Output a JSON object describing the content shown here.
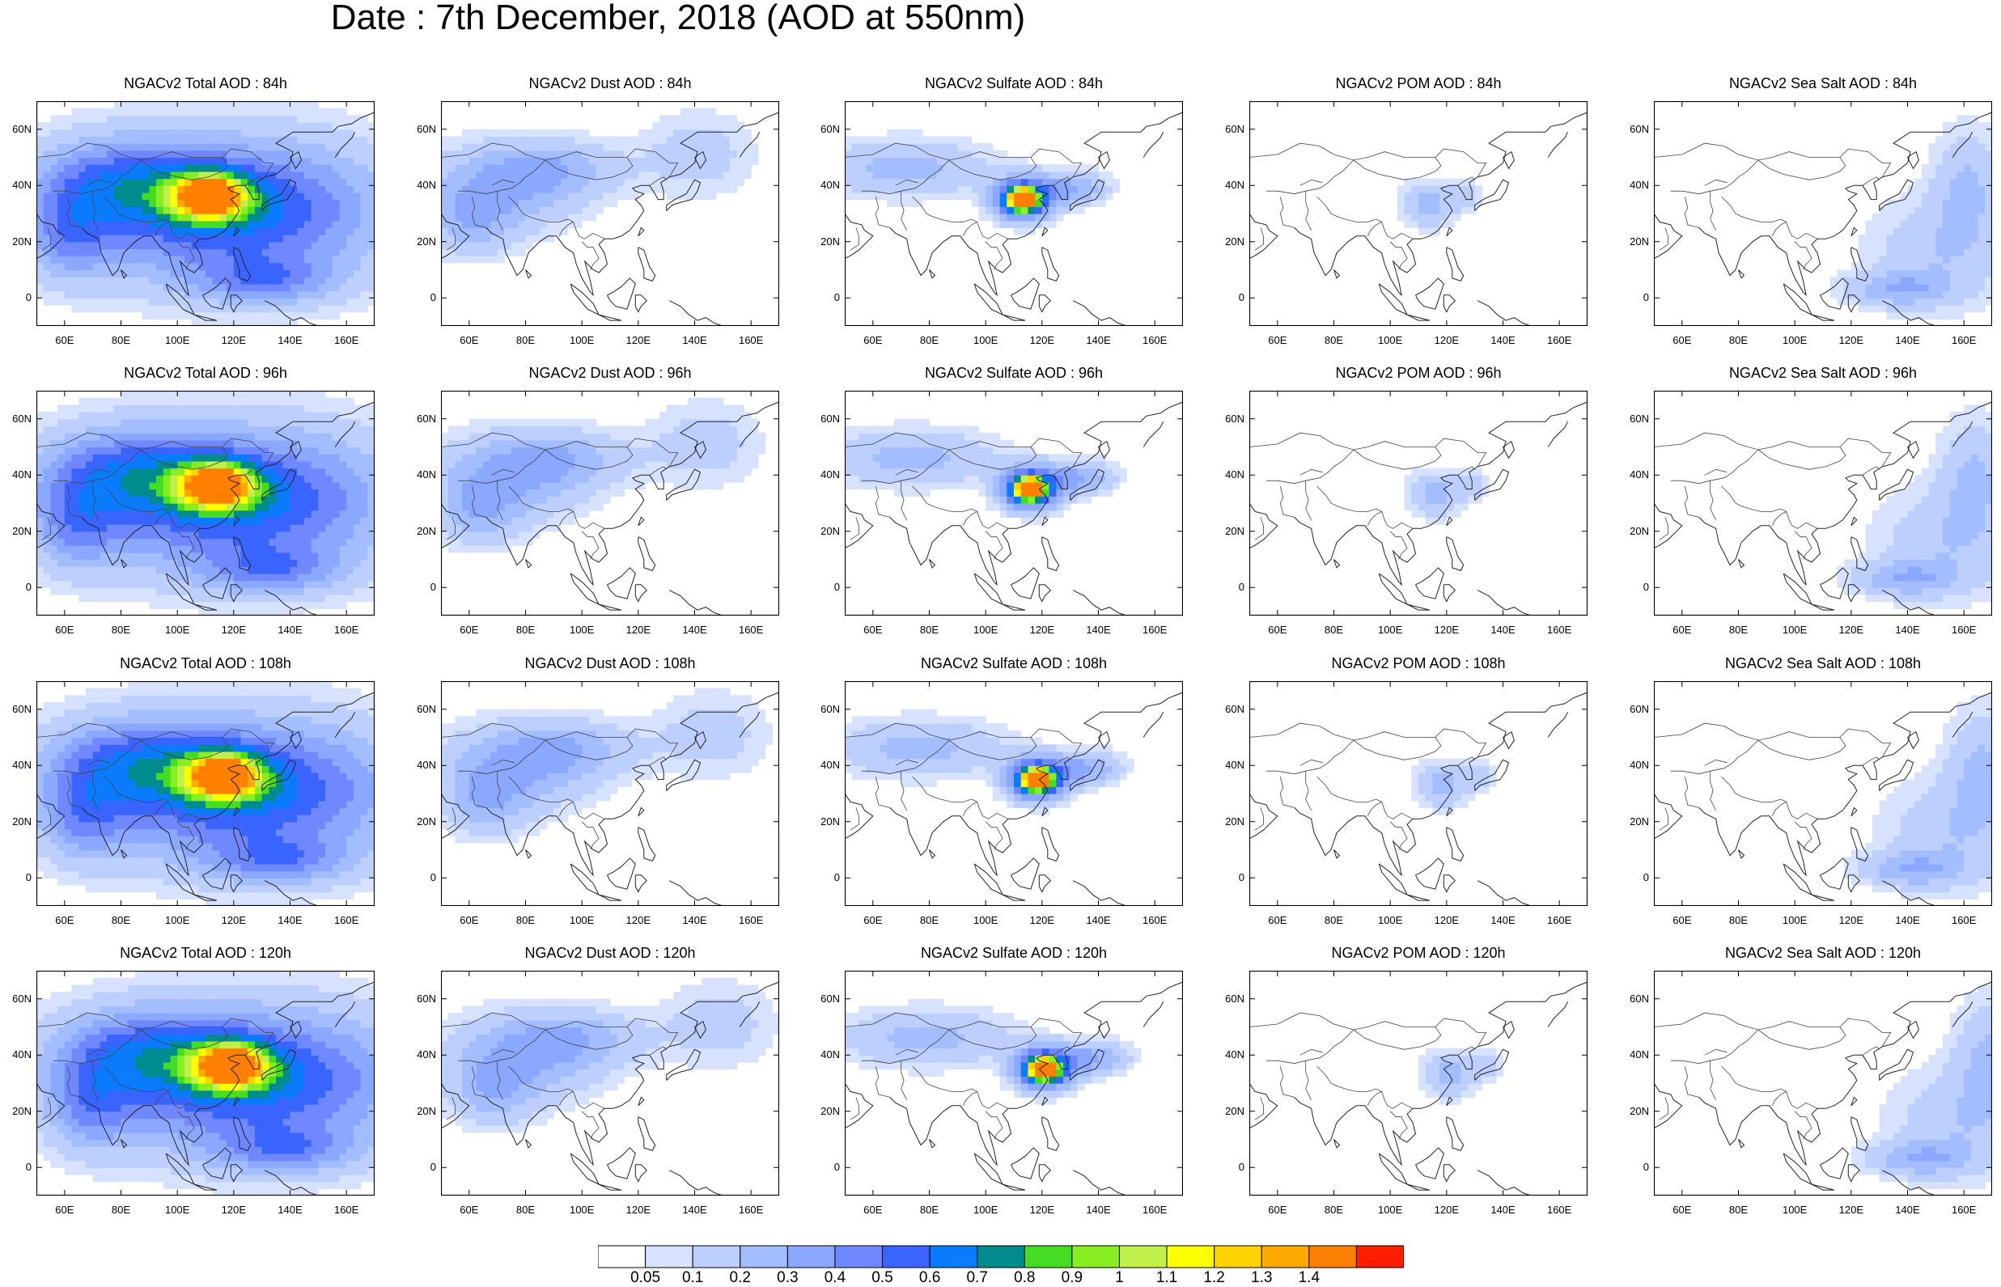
{
  "title": "Date : 7th December, 2018 (AOD at 550nm)",
  "rows": [
    {
      "lead": "84h",
      "panels": [
        "NGACv2 Total AOD : 84h",
        "NGACv2 Dust AOD : 84h",
        "NGACv2 Sulfate AOD : 84h",
        "NGACv2 POM AOD : 84h",
        "NGACv2 Sea Salt AOD : 84h"
      ]
    },
    {
      "lead": "96h",
      "panels": [
        "NGACv2 Total AOD : 96h",
        "NGACv2 Dust AOD : 96h",
        "NGACv2 Sulfate AOD : 96h",
        "NGACv2 POM AOD : 96h",
        "NGACv2 Sea Salt AOD : 96h"
      ]
    },
    {
      "lead": "108h",
      "panels": [
        "NGACv2 Total AOD : 108h",
        "NGACv2 Dust AOD : 108h",
        "NGACv2 Sulfate AOD : 108h",
        "NGACv2 POM AOD : 108h",
        "NGACv2 Sea Salt AOD : 108h"
      ]
    },
    {
      "lead": "120h",
      "panels": [
        "NGACv2 Total AOD : 120h",
        "NGACv2 Dust AOD : 120h",
        "NGACv2 Sulfate AOD : 120h",
        "NGACv2 POM AOD : 120h",
        "NGACv2 Sea Salt  AOD : 120h"
      ]
    }
  ],
  "map": {
    "lat_ticks": [
      "60N",
      "40N",
      "20N",
      "0"
    ],
    "lat_values": [
      60,
      40,
      20,
      0
    ],
    "lon_ticks": [
      "60E",
      "80E",
      "100E",
      "120E",
      "140E",
      "160E"
    ],
    "lon_values": [
      60,
      80,
      100,
      120,
      140,
      160
    ],
    "lon_range": [
      50,
      170
    ],
    "lat_range": [
      -10,
      70
    ]
  },
  "colorbar": {
    "labels": [
      "0.05",
      "0.1",
      "0.2",
      "0.3",
      "0.4",
      "0.5",
      "0.6",
      "0.7",
      "0.8",
      "0.9",
      "1",
      "1.1",
      "1.2",
      "1.3",
      "1.4"
    ],
    "colors": [
      "#ffffff",
      "#d6e2ff",
      "#bccfff",
      "#a3bdff",
      "#8aa8ff",
      "#6f88ff",
      "#3a64ff",
      "#0a7afe",
      "#008c8c",
      "#44dd22",
      "#88ee22",
      "#c2f04a",
      "#ffff00",
      "#ffd200",
      "#ffaa00",
      "#ff7f00",
      "#ff1e00"
    ]
  }
}
